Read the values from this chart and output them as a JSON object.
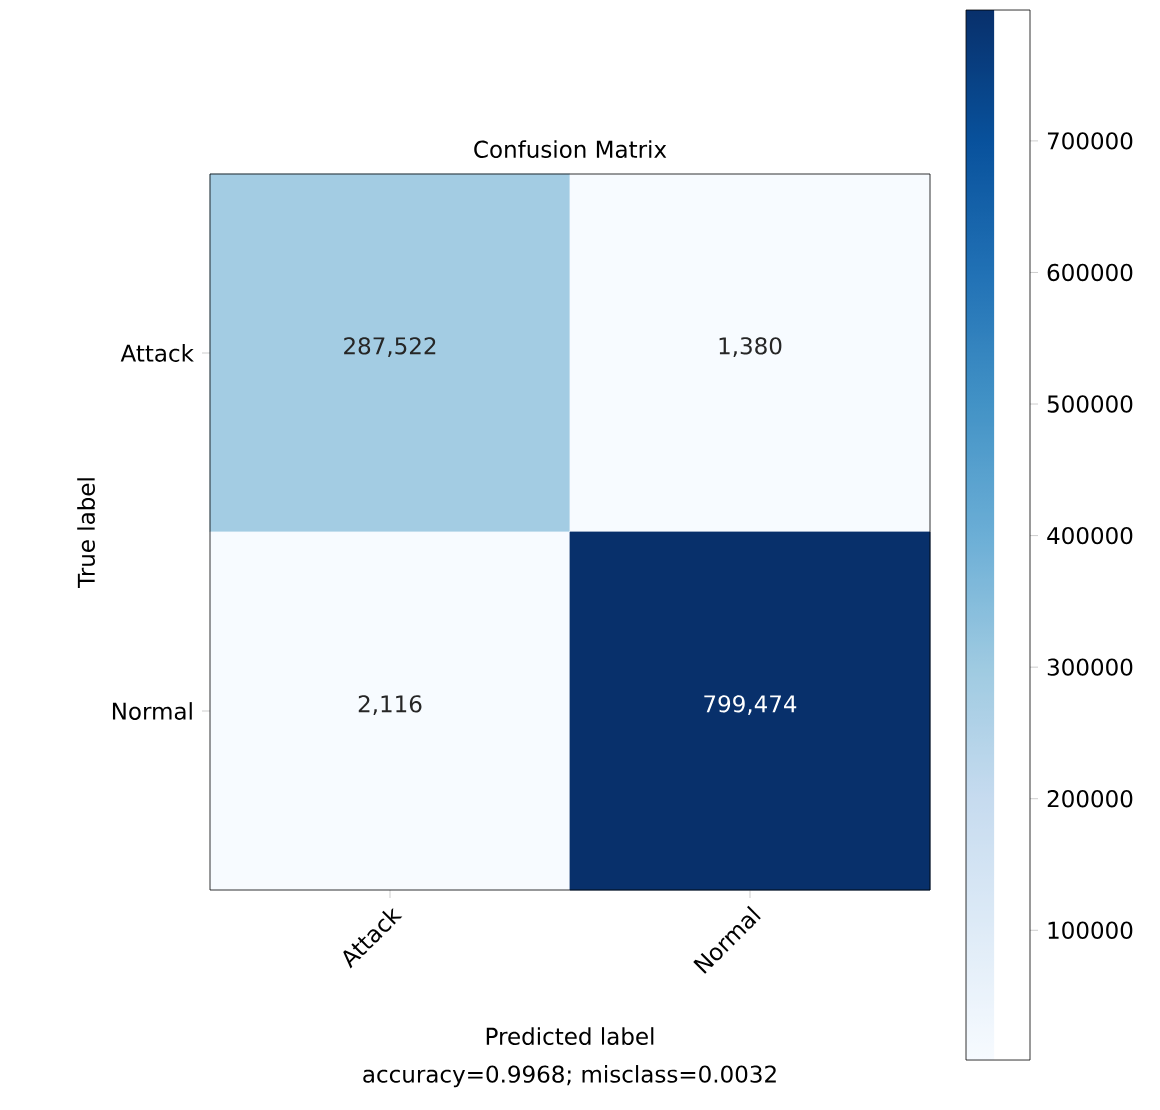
{
  "chart_data": {
    "type": "heatmap",
    "title": "Confusion Matrix",
    "xlabel": "Predicted label",
    "ylabel": "True label",
    "categories": [
      "Attack",
      "Normal"
    ],
    "y_categories": [
      "Attack",
      "Normal"
    ],
    "cells": [
      [
        287522,
        1380
      ],
      [
        2116,
        799474
      ]
    ],
    "cell_labels": [
      [
        "287,522",
        "1,380"
      ],
      [
        "2,116",
        "799,474"
      ]
    ],
    "clim": [
      1380,
      799474
    ],
    "cticks": [
      100000,
      200000,
      300000,
      400000,
      500000,
      600000,
      700000
    ],
    "annotations": [
      "accuracy=0.9968; misclass=0.0032"
    ]
  }
}
